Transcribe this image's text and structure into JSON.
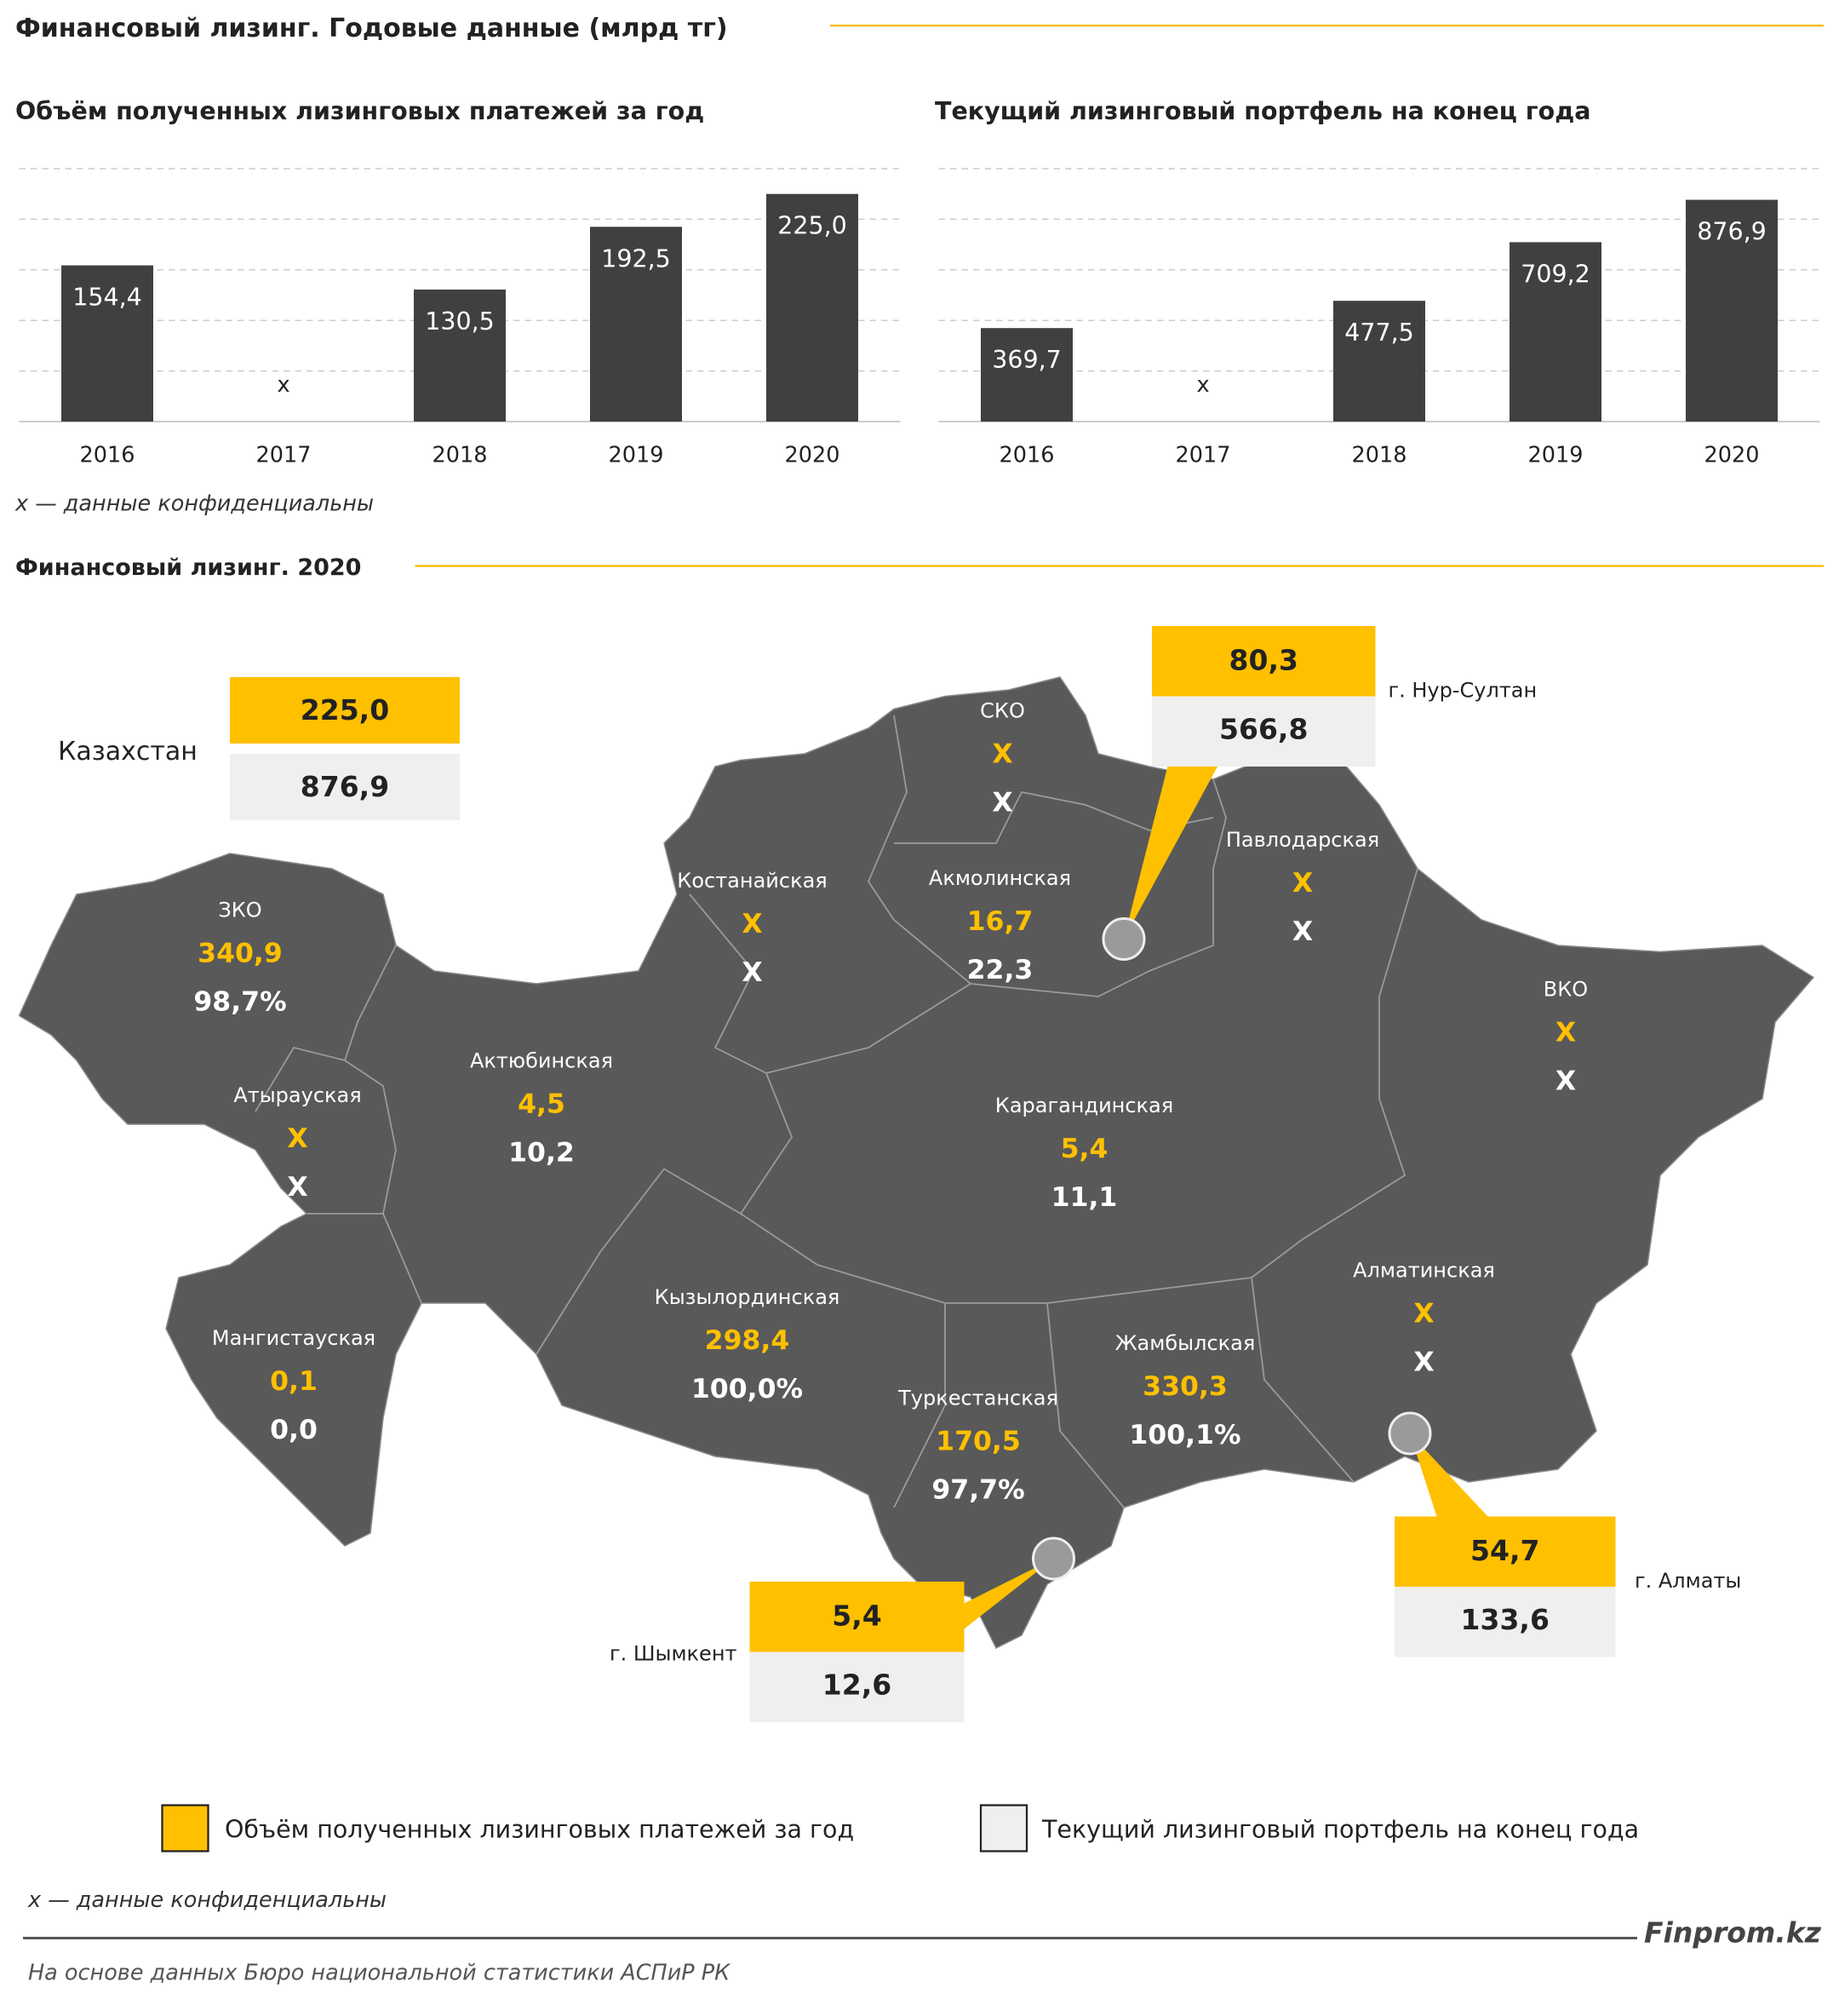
{
  "title": "Финансовый лизинг. Годовые данные (млрд тг)",
  "chart_data": [
    {
      "type": "bar",
      "title": "Объём полученных лизинговых платежей за год",
      "categories": [
        "2016",
        "2017",
        "2018",
        "2019",
        "2020"
      ],
      "values": [
        154.4,
        null,
        130.5,
        192.5,
        225.0
      ],
      "value_labels": [
        "154,4",
        "x",
        "130,5",
        "192,5",
        "225,0"
      ],
      "color": "#404040",
      "ylim": [
        0,
        250
      ],
      "yticks": [
        0,
        50,
        100,
        150,
        200,
        250
      ],
      "grid": true
    },
    {
      "type": "bar",
      "title": "Текущий лизинговый портфель на конец года",
      "categories": [
        "2016",
        "2017",
        "2018",
        "2019",
        "2020"
      ],
      "values": [
        369.7,
        null,
        477.5,
        709.2,
        876.9
      ],
      "value_labels": [
        "369,7",
        "x",
        "477,5",
        "709,2",
        "876,9"
      ],
      "color": "#404040",
      "ylim": [
        0,
        1000
      ],
      "yticks": [
        0,
        200,
        400,
        600,
        800,
        1000
      ],
      "grid": true
    }
  ],
  "note": "x — данные конфиденциальны",
  "map": {
    "title": "Финансовый лизинг. 2020",
    "total": {
      "name": "Казахстан",
      "payments": "225,0",
      "portfolio": "876,9"
    },
    "regions": [
      {
        "name": "ЗКО",
        "payments": "340,9",
        "portfolio": "98,7%"
      },
      {
        "name": "Атырауская",
        "payments": "X",
        "portfolio": "X"
      },
      {
        "name": "Актюбинская",
        "payments": "4,5",
        "portfolio": "10,2"
      },
      {
        "name": "Мангистауская",
        "payments": "0,1",
        "portfolio": "0,0"
      },
      {
        "name": "Костанайская",
        "payments": "X",
        "portfolio": "X"
      },
      {
        "name": "СКО",
        "payments": "X",
        "portfolio": "X"
      },
      {
        "name": "Акмолинская",
        "payments": "16,7",
        "portfolio": "22,3"
      },
      {
        "name": "Павлодарская",
        "payments": "X",
        "portfolio": "X"
      },
      {
        "name": "ВКО",
        "payments": "X",
        "portfolio": "X"
      },
      {
        "name": "Карагандинская",
        "payments": "5,4",
        "portfolio": "11,1"
      },
      {
        "name": "Кызылординская",
        "payments": "298,4",
        "portfolio": "100,0%"
      },
      {
        "name": "Туркестанская",
        "payments": "170,5",
        "portfolio": "97,7%"
      },
      {
        "name": "Жамбылская",
        "payments": "330,3",
        "portfolio": "100,1%"
      },
      {
        "name": "Алматинская",
        "payments": "X",
        "portfolio": "X"
      }
    ],
    "cities": [
      {
        "name": "г. Нур-Султан",
        "payments": "80,3",
        "portfolio": "566,8"
      },
      {
        "name": "г. Шымкент",
        "payments": "5,4",
        "portfolio": "12,6"
      },
      {
        "name": "г. Алматы",
        "payments": "54,7",
        "portfolio": "133,6"
      }
    ],
    "legend": {
      "payments": "Объём полученных лизинговых платежей за год",
      "portfolio": "Текущий лизинговый портфель на конец года"
    }
  },
  "brand": "Finprom.kz",
  "source": "На основе данных Бюро национальной статистики АСПиР РК"
}
